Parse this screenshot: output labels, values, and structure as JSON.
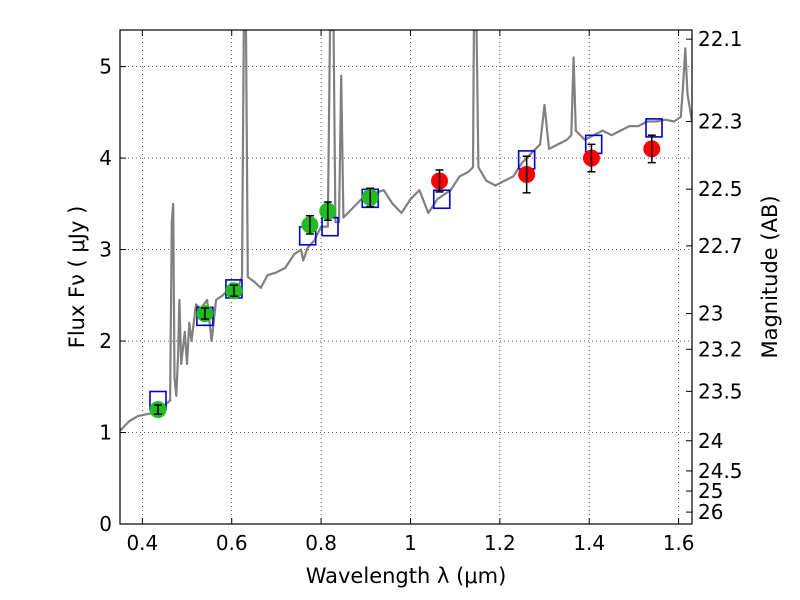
{
  "chart_data": {
    "type": "scatter",
    "xlabel": "Wavelength  λ (μm)",
    "ylabel": "Flux  Fν  ( μJy )",
    "ylabel_right": "Magnitude (AB)",
    "xlim": [
      0.35,
      1.63
    ],
    "ylim": [
      0,
      5.4
    ],
    "grid": true,
    "x_ticks": [
      0.4,
      0.6,
      0.8,
      1.0,
      1.2,
      1.4,
      1.6
    ],
    "x_tick_labels": [
      "0.4",
      "0.6",
      "0.8",
      "1",
      "1.2",
      "1.4",
      "1.6"
    ],
    "y_ticks": [
      0,
      1,
      2,
      3,
      4,
      5
    ],
    "y_tick_labels": [
      "0",
      "1",
      "2",
      "3",
      "4",
      "5"
    ],
    "right_ticks": [
      {
        "label": "22.1",
        "flux": 5.3
      },
      {
        "label": "22.3",
        "flux": 4.4
      },
      {
        "label": "22.5",
        "flux": 3.66
      },
      {
        "label": "22.7",
        "flux": 3.04
      },
      {
        "label": "23",
        "flux": 2.3
      },
      {
        "label": "23.2",
        "flux": 1.91
      },
      {
        "label": "23.5",
        "flux": 1.45
      },
      {
        "label": "24",
        "flux": 0.91
      },
      {
        "label": "24.5",
        "flux": 0.58
      },
      {
        "label": "25",
        "flux": 0.36
      },
      {
        "label": "26",
        "flux": 0.13
      }
    ],
    "series": [
      {
        "name": "model-spectrum",
        "kind": "line",
        "color": "#808080",
        "points": [
          [
            0.35,
            1.02
          ],
          [
            0.37,
            1.12
          ],
          [
            0.39,
            1.18
          ],
          [
            0.41,
            1.2
          ],
          [
            0.43,
            1.22
          ],
          [
            0.45,
            1.3
          ],
          [
            0.462,
            1.35
          ],
          [
            0.466,
            3.3
          ],
          [
            0.469,
            3.5
          ],
          [
            0.472,
            1.6
          ],
          [
            0.476,
            1.4
          ],
          [
            0.48,
            1.85
          ],
          [
            0.483,
            2.45
          ],
          [
            0.487,
            1.75
          ],
          [
            0.495,
            2.1
          ],
          [
            0.5,
            1.75
          ],
          [
            0.505,
            2.2
          ],
          [
            0.51,
            2.0
          ],
          [
            0.52,
            2.4
          ],
          [
            0.53,
            2.35
          ],
          [
            0.545,
            2.45
          ],
          [
            0.555,
            2.0
          ],
          [
            0.565,
            2.45
          ],
          [
            0.58,
            2.5
          ],
          [
            0.6,
            2.6
          ],
          [
            0.615,
            2.6
          ],
          [
            0.623,
            2.7
          ],
          [
            0.627,
            5.4
          ],
          [
            0.632,
            5.4
          ],
          [
            0.636,
            2.7
          ],
          [
            0.65,
            2.65
          ],
          [
            0.665,
            2.58
          ],
          [
            0.68,
            2.72
          ],
          [
            0.7,
            2.75
          ],
          [
            0.72,
            2.8
          ],
          [
            0.74,
            2.95
          ],
          [
            0.755,
            3.0
          ],
          [
            0.76,
            2.88
          ],
          [
            0.77,
            3.02
          ],
          [
            0.785,
            3.1
          ],
          [
            0.8,
            3.25
          ],
          [
            0.815,
            3.25
          ],
          [
            0.82,
            5.4
          ],
          [
            0.828,
            5.4
          ],
          [
            0.832,
            3.3
          ],
          [
            0.84,
            3.3
          ],
          [
            0.845,
            4.9
          ],
          [
            0.85,
            3.35
          ],
          [
            0.87,
            3.45
          ],
          [
            0.89,
            3.55
          ],
          [
            0.91,
            3.6
          ],
          [
            0.94,
            3.65
          ],
          [
            0.96,
            3.5
          ],
          [
            0.98,
            3.4
          ],
          [
            1.0,
            3.55
          ],
          [
            1.02,
            3.65
          ],
          [
            1.04,
            3.4
          ],
          [
            1.06,
            3.55
          ],
          [
            1.09,
            3.65
          ],
          [
            1.11,
            3.8
          ],
          [
            1.13,
            3.85
          ],
          [
            1.14,
            3.9
          ],
          [
            1.142,
            5.4
          ],
          [
            1.148,
            5.4
          ],
          [
            1.152,
            3.9
          ],
          [
            1.17,
            3.75
          ],
          [
            1.19,
            3.7
          ],
          [
            1.21,
            3.75
          ],
          [
            1.23,
            3.8
          ],
          [
            1.25,
            3.95
          ],
          [
            1.27,
            4.05
          ],
          [
            1.29,
            4.15
          ],
          [
            1.3,
            4.58
          ],
          [
            1.31,
            4.1
          ],
          [
            1.33,
            4.15
          ],
          [
            1.35,
            4.2
          ],
          [
            1.36,
            4.25
          ],
          [
            1.365,
            5.1
          ],
          [
            1.37,
            4.3
          ],
          [
            1.39,
            4.2
          ],
          [
            1.41,
            4.25
          ],
          [
            1.43,
            4.3
          ],
          [
            1.45,
            4.25
          ],
          [
            1.47,
            4.3
          ],
          [
            1.49,
            4.35
          ],
          [
            1.51,
            4.35
          ],
          [
            1.53,
            4.4
          ],
          [
            1.55,
            4.4
          ],
          [
            1.57,
            4.42
          ],
          [
            1.59,
            4.4
          ],
          [
            1.605,
            4.45
          ],
          [
            1.61,
            4.8
          ],
          [
            1.615,
            5.2
          ],
          [
            1.62,
            4.7
          ],
          [
            1.63,
            4.4
          ]
        ]
      },
      {
        "name": "model-photometry",
        "kind": "open-squares",
        "color": "#0000cc",
        "x": [
          0.435,
          0.54,
          0.605,
          0.77,
          0.82,
          0.91,
          1.07,
          1.26,
          1.41,
          1.545
        ],
        "y": [
          1.35,
          2.27,
          2.57,
          3.15,
          3.25,
          3.56,
          3.55,
          3.98,
          4.15,
          4.33
        ]
      },
      {
        "name": "observed-optical",
        "kind": "points",
        "color": "#22bb22",
        "x": [
          0.435,
          0.54,
          0.605,
          0.775,
          0.815,
          0.91
        ],
        "y": [
          1.25,
          2.3,
          2.55,
          3.27,
          3.42,
          3.57
        ],
        "err": [
          0.05,
          0.06,
          0.06,
          0.1,
          0.1,
          0.1
        ]
      },
      {
        "name": "observed-infrared",
        "kind": "points",
        "color": "#ff0000",
        "x": [
          1.065,
          1.26,
          1.405,
          1.54
        ],
        "y": [
          3.75,
          3.82,
          4.0,
          4.1
        ],
        "err": [
          0.12,
          0.2,
          0.15,
          0.15
        ]
      }
    ]
  }
}
